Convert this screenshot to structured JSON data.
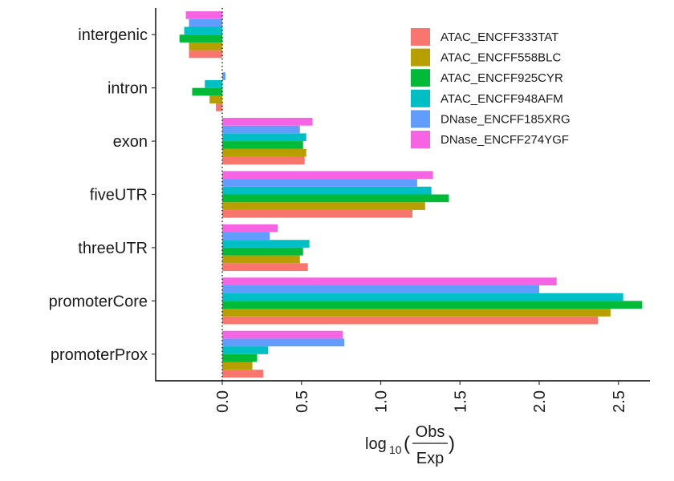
{
  "chart_data": {
    "type": "bar",
    "orientation": "horizontal",
    "categories": [
      "intergenic",
      "intron",
      "exon",
      "fiveUTR",
      "threeUTR",
      "promoterCore",
      "promoterProx"
    ],
    "xlabel": {
      "prefix": "log",
      "subscript": "10",
      "numerator": "Obs",
      "denominator": "Exp"
    },
    "ylabel": "",
    "xlim": [
      -0.42,
      2.68
    ],
    "xticks": [
      0.0,
      0.5,
      1.0,
      1.5,
      2.0,
      2.5
    ],
    "xtick_labels": [
      "0.0",
      "0.5",
      "1.0",
      "1.5",
      "2.0",
      "2.5"
    ],
    "reference_line": 0.0,
    "grid": false,
    "legend_position": "top-right",
    "series": [
      {
        "name": "ATAC_ENCFF333TAT",
        "color": "#F8766D",
        "values": [
          -0.21,
          -0.04,
          0.52,
          1.2,
          0.54,
          2.37,
          0.26
        ]
      },
      {
        "name": "ATAC_ENCFF558BLC",
        "color": "#B79F00",
        "values": [
          -0.21,
          -0.08,
          0.53,
          1.28,
          0.49,
          2.45,
          0.19
        ]
      },
      {
        "name": "ATAC_ENCFF925CYR",
        "color": "#00BA38",
        "values": [
          -0.27,
          -0.19,
          0.51,
          1.43,
          0.51,
          2.65,
          0.22
        ]
      },
      {
        "name": "ATAC_ENCFF948AFM",
        "color": "#00BFC4",
        "values": [
          -0.24,
          -0.11,
          0.53,
          1.32,
          0.55,
          2.53,
          0.29
        ]
      },
      {
        "name": "DNase_ENCFF185XRG",
        "color": "#619CFF",
        "values": [
          -0.21,
          0.02,
          0.49,
          1.23,
          0.3,
          2.0,
          0.77
        ]
      },
      {
        "name": "DNase_ENCFF274YGF",
        "color": "#F564E3",
        "values": [
          -0.23,
          0.0,
          0.57,
          1.33,
          0.35,
          2.11,
          0.76
        ]
      }
    ]
  }
}
